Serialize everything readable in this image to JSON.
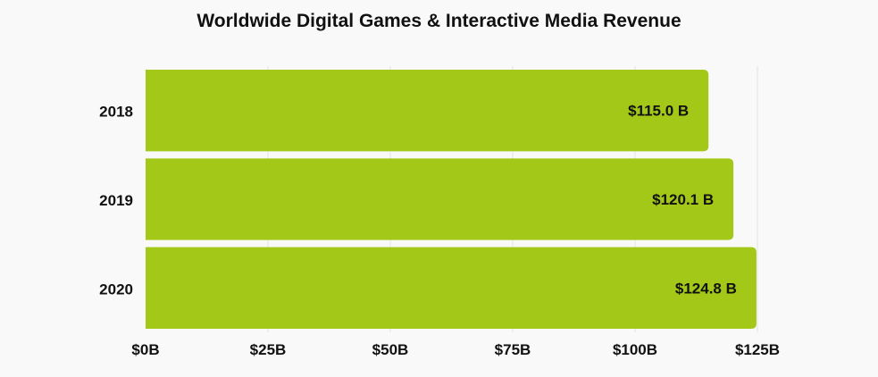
{
  "chart_data": {
    "type": "bar",
    "orientation": "horizontal",
    "title": "Worldwide Digital Games & Interactive Media Revenue",
    "categories": [
      "2018",
      "2019",
      "2020"
    ],
    "values": [
      115.0,
      120.1,
      124.8
    ],
    "data_labels": [
      "$115.0 B",
      "$120.1 B",
      "$124.8 B"
    ],
    "x_ticks": [
      0,
      25,
      50,
      75,
      100,
      125
    ],
    "x_tick_labels": [
      "$0B",
      "$25B",
      "$50B",
      "$75B",
      "$100B",
      "$125B"
    ],
    "xlim": [
      0,
      125
    ],
    "xlabel": "",
    "ylabel": "",
    "grid": true,
    "bar_color": "#a3c817",
    "grid_color": "#e4e4e4"
  }
}
